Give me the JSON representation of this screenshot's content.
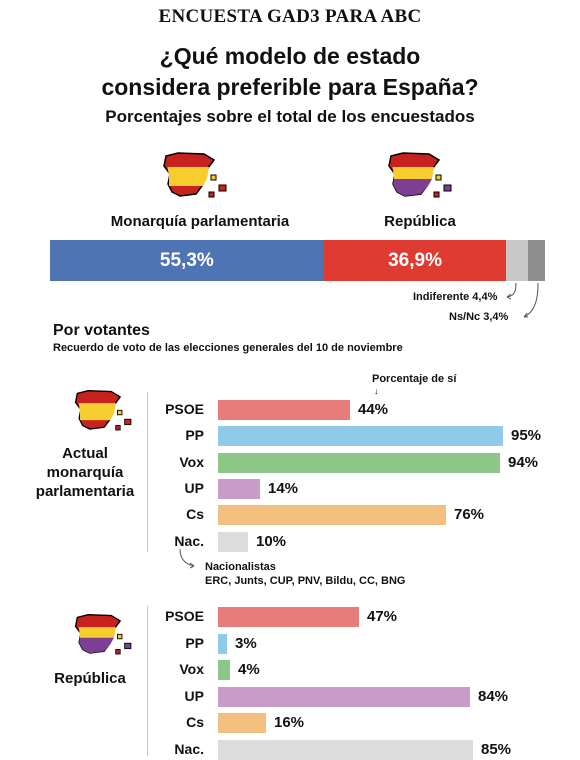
{
  "header": "ENCUESTA GAD3 PARA ABC",
  "title_line1": "¿Qué modelo de estado",
  "title_line2": "considera preferible para España?",
  "subtitle": "Porcentajes sobre el total de los encuestados",
  "labels": {
    "monarquia": "Monarquía parlamentaria",
    "republica": "República",
    "indiferente": "Indiferente 4,4%",
    "nsnc": "Ns/Nc 3,4%",
    "por_votantes": "Por votantes",
    "recuerdo": "Recuerdo de voto de las elecciones generales del 10 de noviembre",
    "porcentaje_si": "Porcentaje de sí",
    "actual_l1": "Actual",
    "actual_l2": "monarquía",
    "actual_l3": "parlamentaria",
    "republica_group": "República",
    "nac_title": "Nacionalistas",
    "nac_list": "ERC, Junts, CUP, PNV, Bildu, CC, BNG"
  },
  "colors": {
    "monarquia": "#4f74b3",
    "republica": "#df3b33",
    "indiferente": "#c8c8c8",
    "nsnc": "#8e8e8e",
    "PSOE": "#e87c7a",
    "PP": "#8fcbe9",
    "Vox": "#8cc788",
    "UP": "#c89cc9",
    "Cs": "#f2bf7f",
    "Nac.": "#dcdcdc"
  },
  "chart_data": [
    {
      "type": "bar",
      "stacked": true,
      "orientation": "horizontal",
      "categories": [
        "Monarquía parlamentaria",
        "República",
        "Indiferente",
        "Ns/Nc"
      ],
      "values": [
        55.3,
        36.9,
        4.4,
        3.4
      ],
      "value_labels": [
        "55,3%",
        "36,9%",
        "4,4%",
        "3,4%"
      ],
      "title": "¿Qué modelo de estado considera preferible para España?"
    },
    {
      "type": "bar",
      "orientation": "horizontal",
      "group": "Actual monarquía parlamentaria",
      "categories": [
        "PSOE",
        "PP",
        "Vox",
        "UP",
        "Cs",
        "Nac."
      ],
      "values": [
        44,
        95,
        94,
        14,
        76,
        10
      ],
      "value_labels": [
        "44%",
        "95%",
        "94%",
        "14%",
        "76%",
        "10%"
      ],
      "xlim": [
        0,
        100
      ]
    },
    {
      "type": "bar",
      "orientation": "horizontal",
      "group": "República",
      "categories": [
        "PSOE",
        "PP",
        "Vox",
        "UP",
        "Cs",
        "Nac."
      ],
      "values": [
        47,
        3,
        4,
        84,
        16,
        85
      ],
      "value_labels": [
        "47%",
        "3%",
        "4%",
        "84%",
        "16%",
        "85%"
      ],
      "xlim": [
        0,
        100
      ]
    }
  ]
}
